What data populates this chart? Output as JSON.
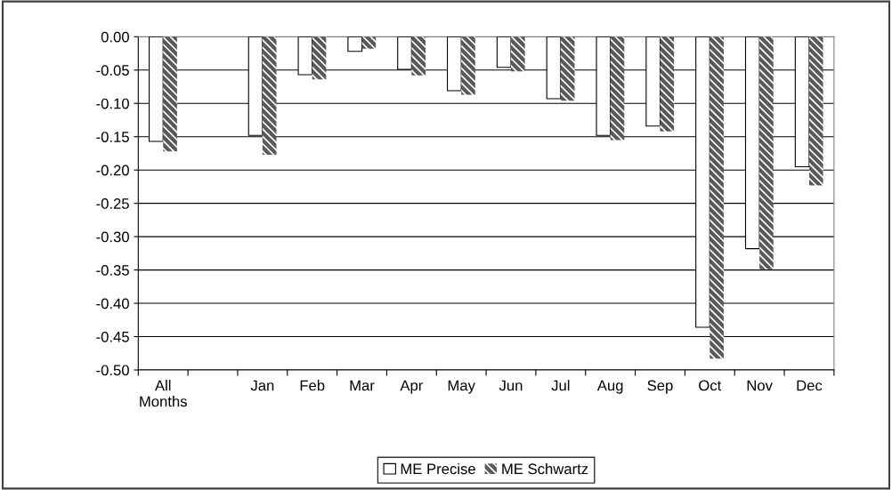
{
  "chart_data": {
    "type": "bar",
    "categories": [
      "All\nMonths",
      null,
      "Jan",
      "Feb",
      "Mar",
      "Apr",
      "May",
      "Jun",
      "Jul",
      "Aug",
      "Sep",
      "Oct",
      "Nov",
      "Dec"
    ],
    "series": [
      {
        "name": "ME Precise",
        "color": "#ffffff",
        "values": [
          -0.157,
          null,
          -0.148,
          -0.057,
          -0.022,
          -0.049,
          -0.081,
          -0.046,
          -0.093,
          -0.148,
          -0.134,
          -0.436,
          -0.318,
          -0.195
        ]
      },
      {
        "name": "ME Schwartz",
        "color": "#595959",
        "values": [
          -0.172,
          null,
          -0.177,
          -0.064,
          -0.018,
          -0.058,
          -0.087,
          -0.052,
          -0.096,
          -0.155,
          -0.142,
          -0.483,
          -0.349,
          -0.223
        ]
      }
    ],
    "ylim": [
      -0.5,
      0
    ],
    "yticks": [
      {
        "value": 0,
        "label": "0.00"
      },
      {
        "value": -0.05,
        "label": "-0.05"
      },
      {
        "value": -0.1,
        "label": "-0.10"
      },
      {
        "value": -0.15,
        "label": "-0.15"
      },
      {
        "value": -0.2,
        "label": "-0.20"
      },
      {
        "value": -0.25,
        "label": "-0.25"
      },
      {
        "value": -0.3,
        "label": "-0.30"
      },
      {
        "value": -0.35,
        "label": "-0.35"
      },
      {
        "value": -0.4,
        "label": "-0.40"
      },
      {
        "value": -0.45,
        "label": "-0.45"
      },
      {
        "value": -0.5,
        "label": "-0.50"
      }
    ],
    "grid": "y",
    "legend": "bottom"
  }
}
